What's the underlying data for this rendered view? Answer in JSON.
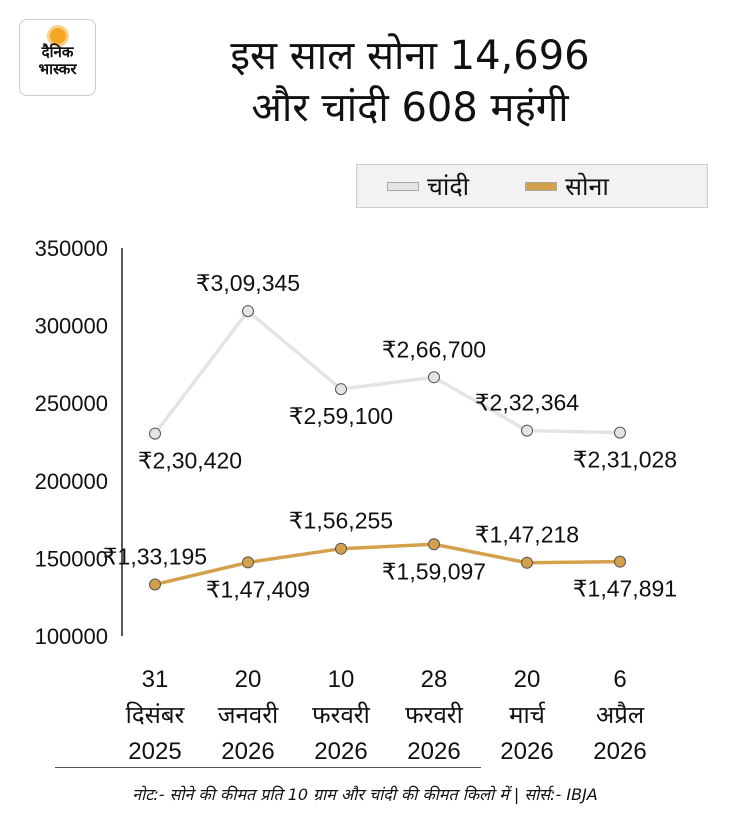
{
  "logo": {
    "line1": "दैनिक",
    "line2": "भास्कर"
  },
  "title": {
    "line1": "इस साल सोना 14,696",
    "line2": "और चांदी 608 महंगी"
  },
  "note": "नोट:- सोने की कीमत प्रति 10 ग्राम और चांदी की कीमत किलो में | सोर्स:- IBJA",
  "chart_data": {
    "type": "line",
    "title": "इस साल सोना 14,696 और चांदी 608 महंगी",
    "xlabel": "",
    "ylabel": "",
    "ylim": [
      100000,
      350000
    ],
    "yticks": [
      "350000",
      "300000",
      "250000",
      "200000",
      "150000",
      "100000"
    ],
    "ytick_values": [
      350000,
      300000,
      250000,
      200000,
      150000,
      100000
    ],
    "categories": [
      [
        "31",
        "दिसंबर",
        "2025"
      ],
      [
        "20",
        "जनवरी",
        "2026"
      ],
      [
        "10",
        "फरवरी",
        "2026"
      ],
      [
        "28",
        "फरवरी",
        "2026"
      ],
      [
        "20",
        "मार्च",
        "2026"
      ],
      [
        "6",
        "अप्रैल",
        "2026"
      ]
    ],
    "legend_position": "top-right",
    "series": [
      {
        "name": "चांदी",
        "color": "#e3e4e3",
        "values": [
          230420,
          309345,
          259100,
          266700,
          232364,
          231028
        ],
        "labels": [
          "₹2,30,420",
          "₹3,09,345",
          "₹2,59,100",
          "₹2,66,700",
          "₹2,32,364",
          "₹2,31,028"
        ]
      },
      {
        "name": "सोना",
        "color": "#d4a04c",
        "values": [
          133195,
          147409,
          156255,
          159097,
          147218,
          147891
        ],
        "labels": [
          "₹1,33,195",
          "₹1,47,409",
          "₹1,56,255",
          "₹1,59,097",
          "₹1,47,218",
          "₹1,47,891"
        ]
      }
    ]
  }
}
